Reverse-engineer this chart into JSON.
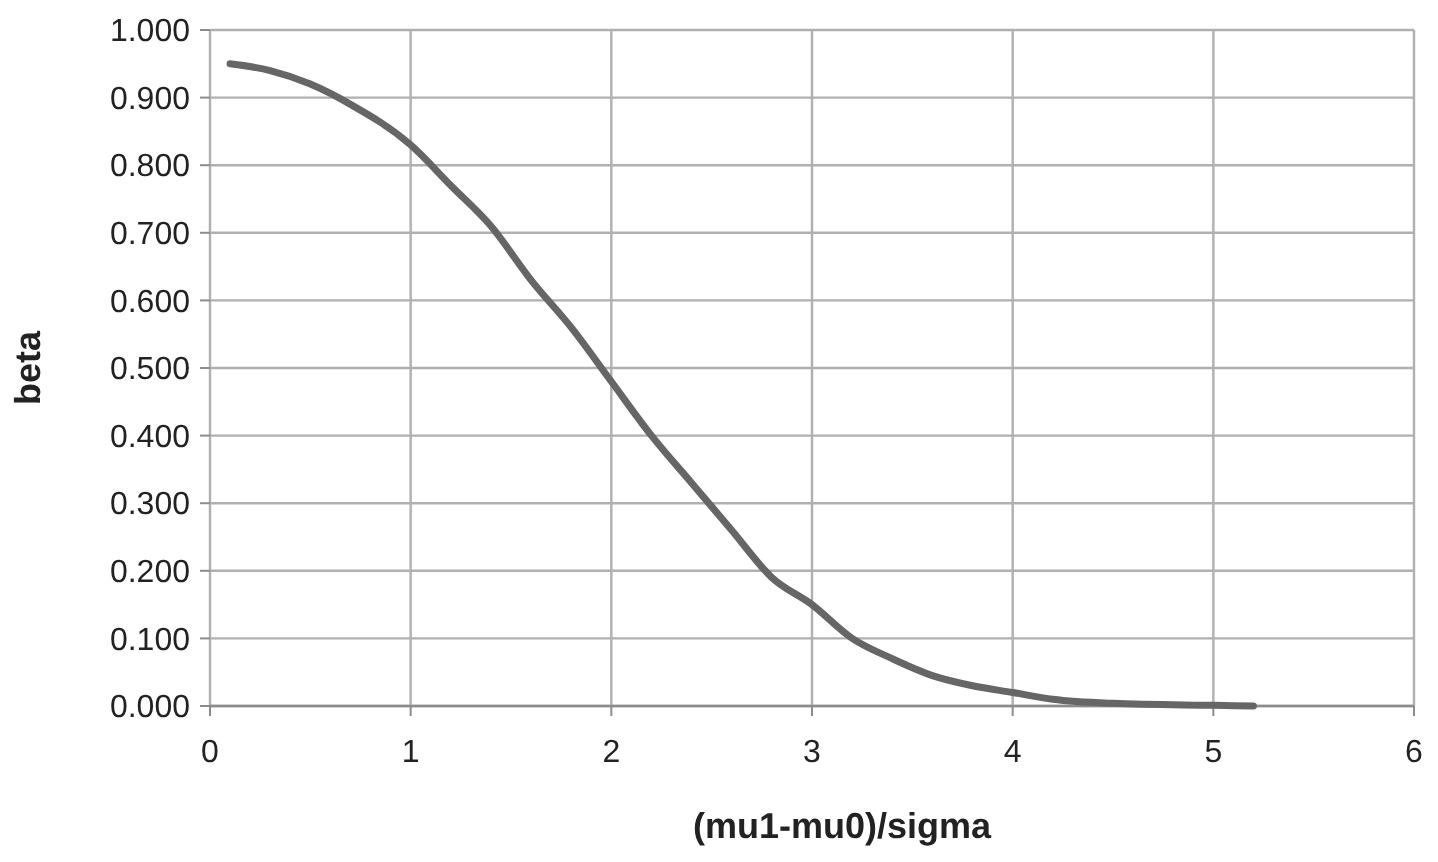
{
  "chart_data": {
    "type": "line",
    "xlabel": "(mu1-mu0)/sigma",
    "ylabel": "beta",
    "x": [
      0.1,
      0.3,
      0.5,
      0.7,
      1.0,
      1.2,
      1.4,
      1.6,
      1.8,
      2.0,
      2.2,
      2.4,
      2.6,
      2.8,
      3.0,
      3.2,
      3.4,
      3.6,
      3.8,
      4.0,
      4.2,
      4.5,
      5.0,
      5.2
    ],
    "series": [
      {
        "color": "#666666",
        "values": [
          0.95,
          0.94,
          0.92,
          0.89,
          0.83,
          0.77,
          0.71,
          0.63,
          0.56,
          0.48,
          0.4,
          0.33,
          0.26,
          0.19,
          0.15,
          0.1,
          0.07,
          0.045,
          0.03,
          0.02,
          0.01,
          0.004,
          0.001,
          0.0
        ]
      }
    ],
    "xlim": [
      0,
      6
    ],
    "xticks": [
      0,
      1,
      2,
      3,
      4,
      5,
      6
    ],
    "ylim": [
      0,
      1
    ],
    "yticks": [
      {
        "value": 0,
        "label": "0.000"
      },
      {
        "value": 0.1,
        "label": "0.100"
      },
      {
        "value": 0.2,
        "label": "0.200"
      },
      {
        "value": 0.3,
        "label": "0.300"
      },
      {
        "value": 0.4,
        "label": "0.400"
      },
      {
        "value": 0.5,
        "label": "0.500"
      },
      {
        "value": 0.6,
        "label": "0.600"
      },
      {
        "value": 0.7,
        "label": "0.700"
      },
      {
        "value": 0.8,
        "label": "0.800"
      },
      {
        "value": 0.9,
        "label": "0.900"
      },
      {
        "value": 1,
        "label": "1.000"
      }
    ],
    "grid": true,
    "marker": "none",
    "line_style": "solid"
  }
}
